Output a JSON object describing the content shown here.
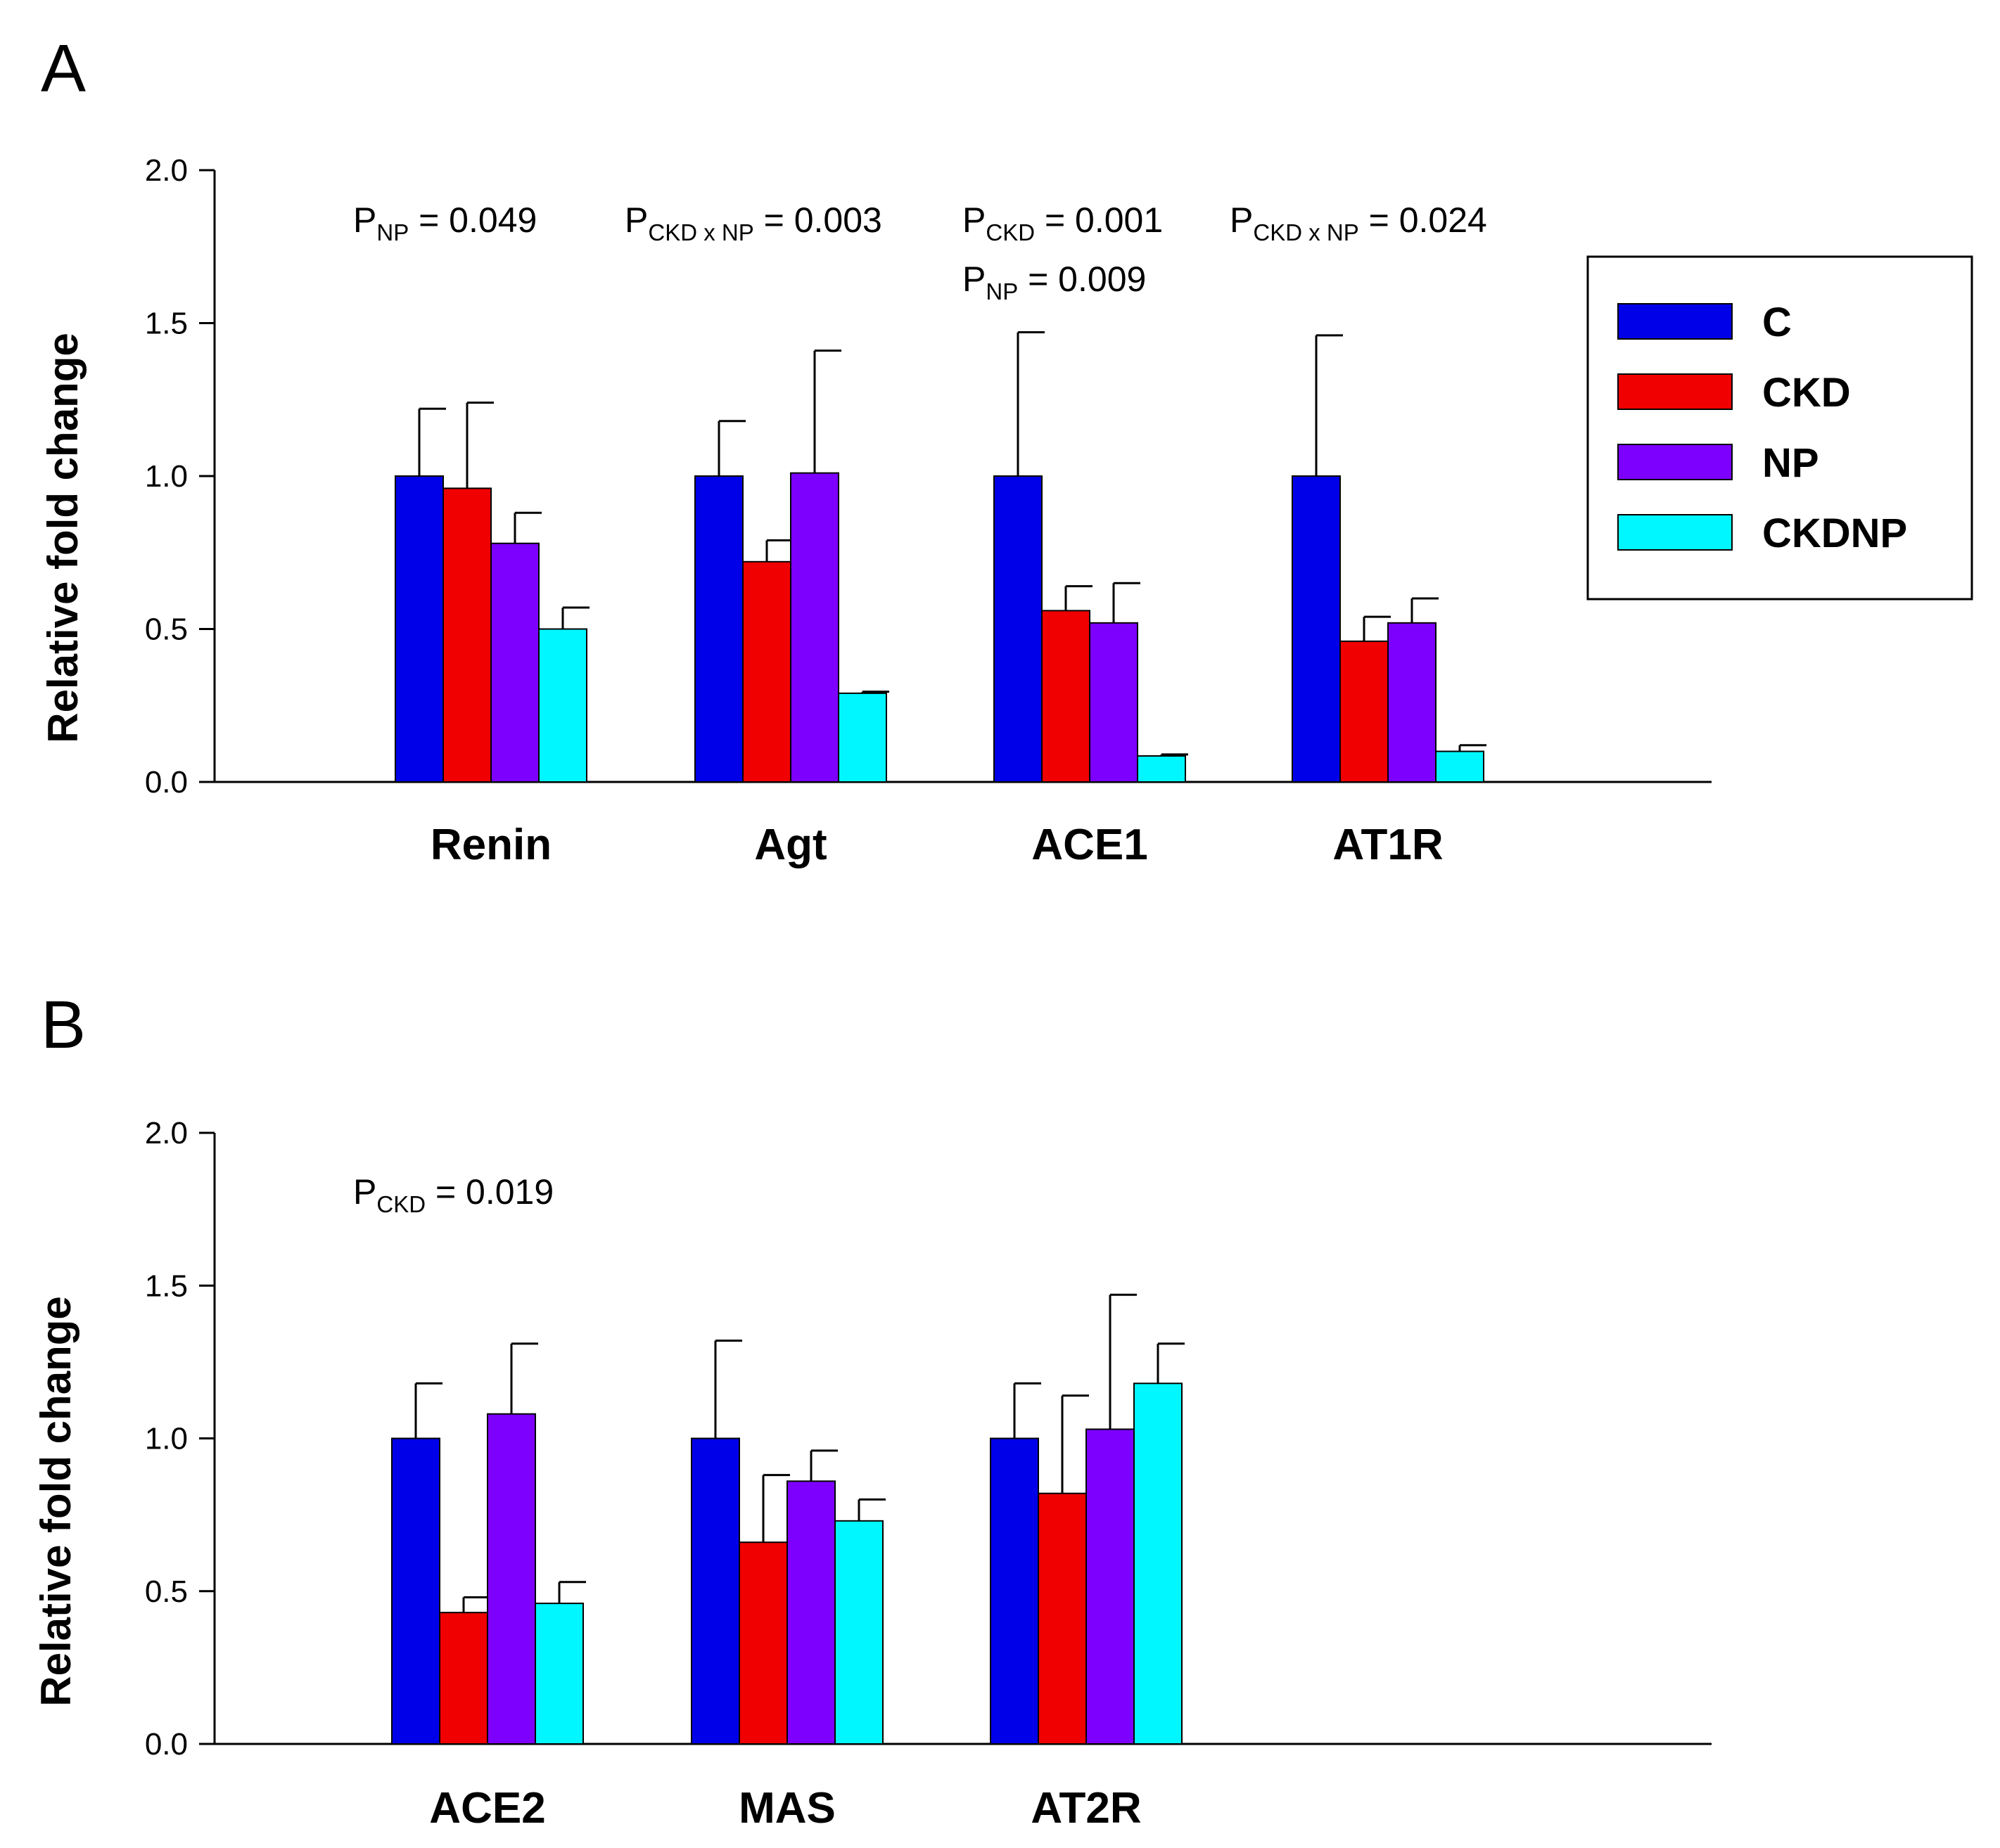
{
  "colors": {
    "C": "#0000e8",
    "CKD": "#f00000",
    "NP": "#7d00ff",
    "CKDNP": "#00f7ff",
    "axis": "#000000"
  },
  "legend": {
    "position": "right of panel A",
    "items": [
      {
        "name": "C",
        "label": "C"
      },
      {
        "name": "CKD",
        "label": "CKD"
      },
      {
        "name": "NP",
        "label": "NP"
      },
      {
        "name": "CKDNP",
        "label": "CKDNP"
      }
    ]
  },
  "chart_data": [
    {
      "type": "bar",
      "panel": "A",
      "ylabel": "Relative fold change",
      "xlabel": "",
      "ylim": [
        0,
        2.0
      ],
      "yticks": [
        "0.0",
        "0.5",
        "1.0",
        "1.5",
        "2.0"
      ],
      "categories": [
        "Renin",
        "Agt",
        "ACE1",
        "AT1R"
      ],
      "series": [
        {
          "name": "C",
          "values": [
            1.0,
            1.0,
            1.0,
            1.0
          ],
          "errors": [
            0.22,
            0.18,
            0.47,
            0.46
          ]
        },
        {
          "name": "CKD",
          "values": [
            0.96,
            0.72,
            0.56,
            0.46
          ],
          "errors": [
            0.28,
            0.07,
            0.08,
            0.08
          ]
        },
        {
          "name": "NP",
          "values": [
            0.78,
            1.01,
            0.52,
            0.52
          ],
          "errors": [
            0.1,
            0.4,
            0.13,
            0.08
          ]
        },
        {
          "name": "CKDNP",
          "values": [
            0.5,
            0.29,
            0.085,
            0.1
          ],
          "errors": [
            0.07,
            0.005,
            0.005,
            0.02
          ]
        }
      ],
      "annotations": [
        {
          "p": "P",
          "sub": "NP",
          "text": " = 0.049"
        },
        {
          "p": "P",
          "sub": "CKD x NP",
          "text": " = 0.003"
        },
        {
          "p": "P",
          "sub": "CKD",
          "text": " = 0.001"
        },
        {
          "p": "P",
          "sub": "NP",
          "text": "  = 0.009"
        },
        {
          "p": "P",
          "sub": "CKD x NP",
          "text": " = 0.024"
        }
      ]
    },
    {
      "type": "bar",
      "panel": "B",
      "ylabel": "Relative fold change",
      "xlabel": "",
      "ylim": [
        0,
        2.0
      ],
      "yticks": [
        "0.0",
        "0.5",
        "1.0",
        "1.5",
        "2.0"
      ],
      "categories": [
        "ACE2",
        "MAS",
        "AT2R"
      ],
      "series": [
        {
          "name": "C",
          "values": [
            1.0,
            1.0,
            1.0
          ],
          "errors": [
            0.18,
            0.32,
            0.18
          ]
        },
        {
          "name": "CKD",
          "values": [
            0.43,
            0.66,
            0.82
          ],
          "errors": [
            0.05,
            0.22,
            0.32
          ]
        },
        {
          "name": "NP",
          "values": [
            1.08,
            0.86,
            1.03
          ],
          "errors": [
            0.23,
            0.1,
            0.44
          ]
        },
        {
          "name": "CKDNP",
          "values": [
            0.46,
            0.73,
            1.18
          ],
          "errors": [
            0.07,
            0.07,
            0.13
          ]
        }
      ],
      "annotations": [
        {
          "p": "P",
          "sub": "CKD",
          "text": " = 0.019"
        }
      ]
    }
  ]
}
